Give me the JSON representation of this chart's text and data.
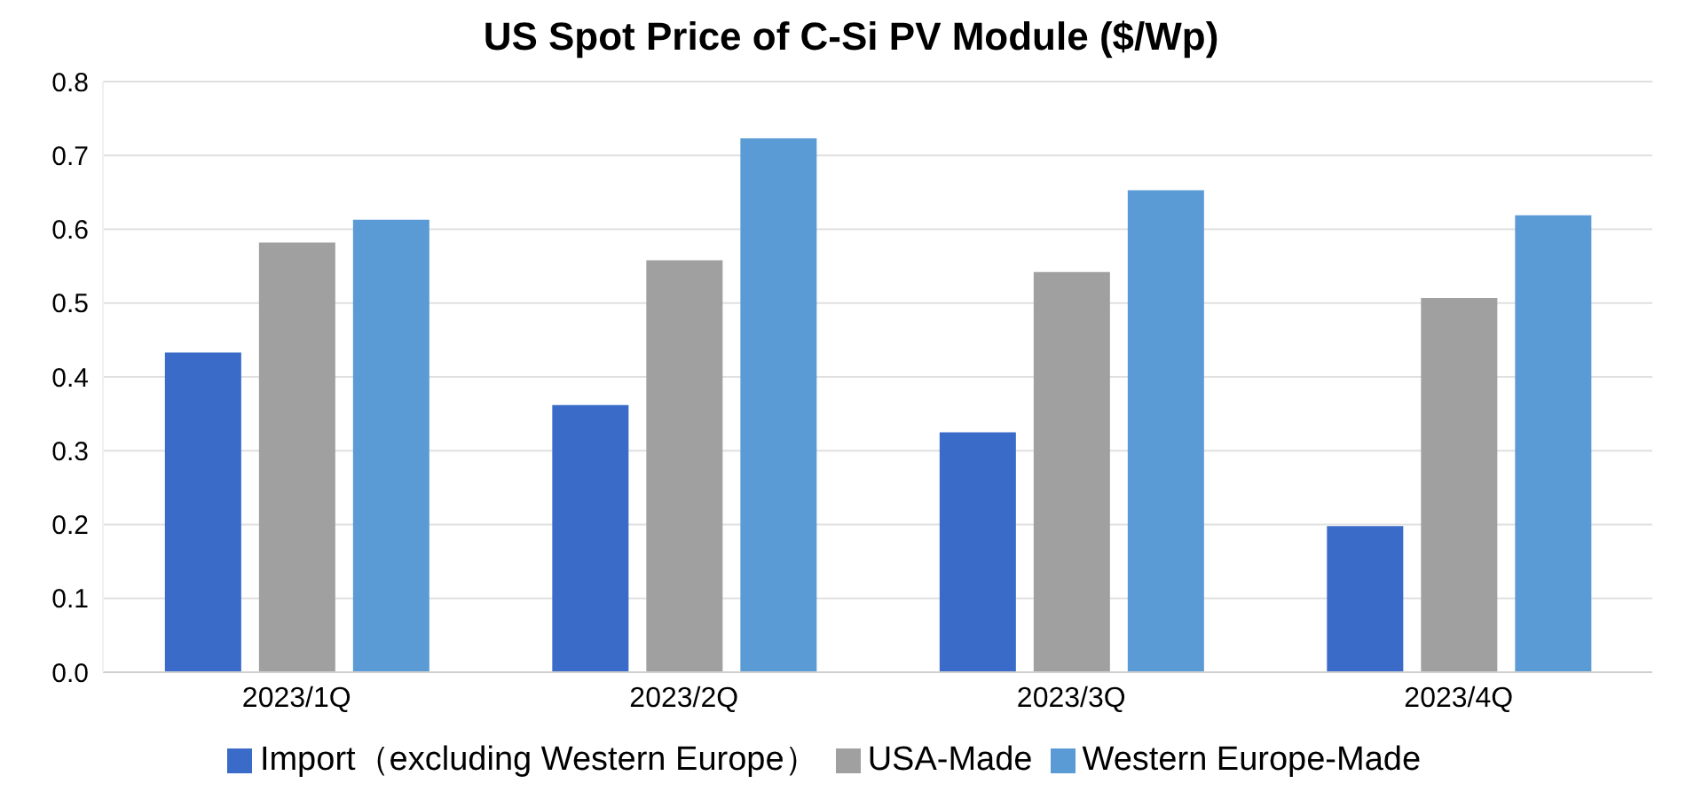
{
  "chart_data": {
    "type": "bar",
    "title": "US Spot Price of C-Si PV Module ($/Wp)",
    "categories": [
      "2023/1Q",
      "2023/2Q",
      "2023/3Q",
      "2023/4Q"
    ],
    "series": [
      {
        "name": "Import（excluding Western Europe）",
        "color": "#3a6bc8",
        "values": [
          0.433,
          0.362,
          0.325,
          0.198
        ]
      },
      {
        "name": "USA-Made",
        "color": "#a0a0a0",
        "values": [
          0.582,
          0.558,
          0.542,
          0.507
        ]
      },
      {
        "name": "Western Europe-Made",
        "color": "#5b9bd5",
        "values": [
          0.613,
          0.723,
          0.653,
          0.619
        ]
      }
    ],
    "ylim": [
      0,
      0.8
    ],
    "yticks": [
      {
        "value": 0,
        "label": "0.0"
      },
      0.1,
      0.2,
      0.3,
      0.4,
      0.5,
      0.6,
      0.7,
      0.8
    ],
    "grid": "y",
    "legend": "bottom"
  }
}
